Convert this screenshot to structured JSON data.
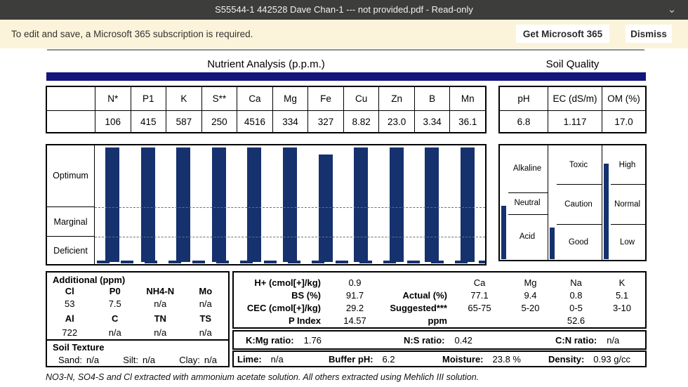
{
  "window": {
    "title": "S55544-1 442528 Dave Chan-1 --- not provided.pdf - Read-only",
    "chevron_glyph": "⌄"
  },
  "banner": {
    "message": "To edit and save, a Microsoft 365 subscription is required.",
    "get_button": "Get Microsoft 365",
    "dismiss_button": "Dismiss"
  },
  "page": {
    "nutrient_title": "Nutrient Analysis (p.p.m.)",
    "soil_quality_title": "Soil Quality",
    "footnote": "NO3-N, SO4-S and Cl extracted with ammonium acetate solution. All others extracted using Mehlich III solution."
  },
  "colors": {
    "accent_navy": "#15157e",
    "bar_navy": "#15316e"
  },
  "nutrient_table": {
    "headers": [
      "",
      "N*",
      "P1",
      "K",
      "S**",
      "Ca",
      "Mg",
      "Fe",
      "Cu",
      "Zn",
      "B",
      "Mn"
    ],
    "values": [
      "",
      "106",
      "415",
      "587",
      "250",
      "4516",
      "334",
      "327",
      "8.82",
      "23.0",
      "3.34",
      "36.1"
    ]
  },
  "quality_table": {
    "headers": [
      "pH",
      "EC (dS/m)",
      "OM (%)"
    ],
    "values": [
      "6.8",
      "1.117",
      "17.0"
    ]
  },
  "chart_data": [
    {
      "type": "bar",
      "title": "Nutrient Analysis (p.p.m.)",
      "categories": [
        "N*",
        "P1",
        "K",
        "S**",
        "Ca",
        "Mg",
        "Fe",
        "Cu",
        "Zn",
        "B",
        "Mn"
      ],
      "values": [
        106,
        415,
        587,
        250,
        4516,
        334,
        327,
        8.82,
        23.0,
        3.34,
        36.1
      ],
      "zone_labels": [
        "Optimum",
        "Marginal",
        "Deficient"
      ],
      "zone_bounds_pct": [
        0,
        52,
        77,
        100
      ],
      "bar_top_pct": [
        2,
        2,
        2,
        2,
        2,
        2,
        7.5,
        2,
        2,
        2,
        2
      ],
      "rating_per_bar": [
        "Optimum",
        "Optimum",
        "Optimum",
        "Optimum",
        "Optimum",
        "Optimum",
        "Optimum",
        "Optimum",
        "Optimum",
        "Optimum",
        "Optimum"
      ],
      "legend_position": "left",
      "grid": "dashed-zone-lines"
    },
    {
      "type": "bar",
      "title": "Soil Quality",
      "columns": [
        {
          "metric": "pH",
          "value": 6.8,
          "zones": [
            "Alkaline",
            "Neutral",
            "Acid"
          ],
          "zone_bounds_pct": [
            0,
            41,
            60,
            100
          ],
          "bar_top_pct": 53
        },
        {
          "metric": "EC (dS/m)",
          "value": 1.117,
          "zones": [
            "Toxic",
            "Caution",
            "Good"
          ],
          "zone_bounds_pct": [
            0,
            34,
            69,
            100
          ],
          "bar_top_pct": 72
        },
        {
          "metric": "OM (%)",
          "value": 17.0,
          "zones": [
            "High",
            "Normal",
            "Low"
          ],
          "zone_bounds_pct": [
            0,
            34,
            69,
            100
          ],
          "bar_top_pct": 16
        }
      ]
    }
  ],
  "additional": {
    "title": "Additional (ppm)",
    "rows": [
      {
        "labels": [
          "Cl",
          "P0",
          "NH4-N",
          "Mo"
        ],
        "values": [
          "53",
          "7.5",
          "n/a",
          "n/a"
        ]
      },
      {
        "labels": [
          "Al",
          "C",
          "TN",
          "TS"
        ],
        "values": [
          "722",
          "n/a",
          "n/a",
          "n/a"
        ]
      }
    ]
  },
  "soil_texture": {
    "title": "Soil Texture",
    "items": [
      {
        "label": "Sand:",
        "value": "n/a"
      },
      {
        "label": "Silt:",
        "value": "n/a"
      },
      {
        "label": "Clay:",
        "value": "n/a"
      }
    ]
  },
  "exchange_block": {
    "rows": [
      [
        "H+ (cmol[+]/kg)",
        "0.9",
        "",
        "Ca",
        "Mg",
        "Na",
        "K"
      ],
      [
        "BS (%)",
        "91.7",
        "Actual (%)",
        "77.1",
        "9.4",
        "0.8",
        "5.1"
      ],
      [
        "CEC (cmol[+]/kg)",
        "29.2",
        "Suggested***",
        "65-75",
        "5-20",
        "0-5",
        "3-10"
      ],
      [
        "P Index",
        "14.57",
        "ppm",
        "",
        "",
        "52.6",
        ""
      ]
    ]
  },
  "ratios": [
    {
      "label": "K:Mg ratio:",
      "value": "1.76"
    },
    {
      "label": "N:S ratio:",
      "value": "0.42"
    },
    {
      "label": "C:N ratio:",
      "value": "n/a"
    }
  ],
  "misc": [
    {
      "label": "Lime:",
      "value": "n/a"
    },
    {
      "label": "Buffer pH:",
      "value": "6.2"
    },
    {
      "label": "Moisture:",
      "value": "23.8 %"
    },
    {
      "label": "Density:",
      "value": "0.93 g/cc"
    }
  ]
}
